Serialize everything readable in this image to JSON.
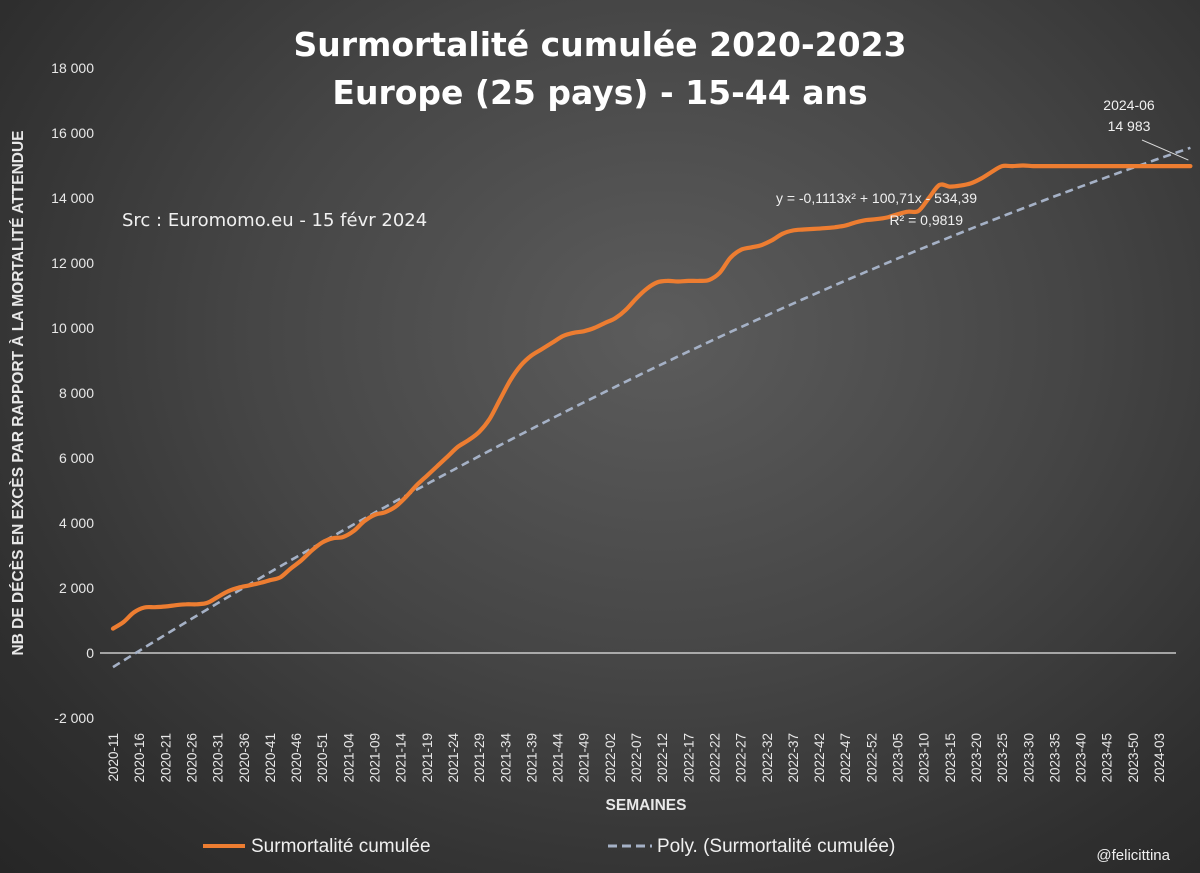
{
  "chart_data": {
    "type": "line",
    "title": [
      "Surmortalité cumulée 2020-2023",
      "Europe (25 pays) - 15-44 ans"
    ],
    "xlabel": "SEMAINES",
    "ylabel": "NB DE DÉCÈS EN EXCÈS PAR RAPPORT À LA MORTALITÉ ATTENDUE",
    "ylim": [
      -2000,
      18000
    ],
    "yticks": [
      -2000,
      0,
      2000,
      4000,
      6000,
      8000,
      10000,
      12000,
      14000,
      16000,
      18000
    ],
    "ytick_labels": [
      "-2 000",
      "0",
      "2 000",
      "4 000",
      "6 000",
      "8 000",
      "10 000",
      "12 000",
      "14 000",
      "16 000",
      "18 000"
    ],
    "x_tick_labels": [
      "2020-11",
      "2020-16",
      "2020-21",
      "2020-26",
      "2020-31",
      "2020-36",
      "2020-41",
      "2020-46",
      "2020-51",
      "2021-04",
      "2021-09",
      "2021-14",
      "2021-19",
      "2021-24",
      "2021-29",
      "2021-34",
      "2021-39",
      "2021-44",
      "2021-49",
      "2022-02",
      "2022-07",
      "2022-12",
      "2022-17",
      "2022-22",
      "2022-27",
      "2022-32",
      "2022-37",
      "2022-42",
      "2022-47",
      "2022-52",
      "2023-05",
      "2023-10",
      "2023-15",
      "2023-20",
      "2023-25",
      "2023-30",
      "2023-35",
      "2023-40",
      "2023-45",
      "2023-50",
      "2024-03"
    ],
    "x_tick_step_weeks": 5,
    "legend_position": "bottom",
    "grid": false,
    "series": [
      {
        "name": "Surmortalité cumulée",
        "color": "#ed7d31",
        "style": "solid",
        "x_week_index": [
          0,
          2,
          4,
          6,
          8,
          10,
          12,
          14,
          16,
          18,
          20,
          22,
          24,
          26,
          28,
          30,
          32,
          34,
          36,
          38,
          40,
          42,
          44,
          46,
          48,
          50,
          52,
          54,
          56,
          58,
          60,
          62,
          64,
          66,
          68,
          70,
          72,
          74,
          76,
          78,
          80,
          82,
          84,
          86,
          88,
          90,
          92,
          94,
          96,
          98,
          100,
          102,
          104,
          106,
          108,
          110,
          112,
          114,
          116,
          118,
          120,
          122,
          124,
          126,
          128,
          130,
          132,
          134,
          136,
          138,
          140,
          142,
          144,
          146,
          148,
          150,
          152,
          154,
          156,
          158,
          160,
          162,
          164,
          166,
          168,
          170,
          172,
          174,
          176,
          178,
          180,
          182,
          184,
          186,
          188,
          190,
          192,
          194,
          196,
          198,
          200,
          202,
          204,
          206
        ],
        "values": [
          750,
          950,
          1250,
          1400,
          1410,
          1430,
          1470,
          1500,
          1500,
          1540,
          1720,
          1900,
          2010,
          2080,
          2150,
          2240,
          2330,
          2600,
          2850,
          3150,
          3400,
          3530,
          3570,
          3750,
          4050,
          4250,
          4330,
          4500,
          4800,
          5150,
          5450,
          5750,
          6050,
          6350,
          6550,
          6800,
          7200,
          7800,
          8400,
          8850,
          9150,
          9350,
          9550,
          9750,
          9850,
          9900,
          10000,
          10150,
          10300,
          10550,
          10900,
          11200,
          11400,
          11450,
          11430,
          11450,
          11450,
          11480,
          11700,
          12150,
          12400,
          12480,
          12550,
          12700,
          12900,
          13000,
          13030,
          13050,
          13070,
          13100,
          13150,
          13250,
          13320,
          13350,
          13400,
          13500,
          13580,
          13600,
          14000,
          14400,
          14350,
          14380,
          14450,
          14600,
          14800,
          14980,
          14980,
          15000,
          14983,
          14983,
          14983,
          14983,
          14983,
          14983,
          14983,
          14983,
          14983,
          14983,
          14983,
          14983,
          14983,
          14983,
          14983,
          14983
        ]
      },
      {
        "name": "Poly. (Surmortalité cumulée)",
        "color": "#a5b1c6",
        "style": "dashed",
        "fit": {
          "a": -0.1113,
          "b": 100.71,
          "c": -534.39,
          "r2": 0.9819
        }
      }
    ],
    "annotations": {
      "source": "Src : Euromomo.eu  - 15 févr 2024",
      "equation": "y = -0,1113x² + 100,71x - 534,39",
      "r2": "R² = 0,9819",
      "last_point_label": "2024-06",
      "last_point_value": "14 983"
    },
    "credit": "@felicittina"
  }
}
